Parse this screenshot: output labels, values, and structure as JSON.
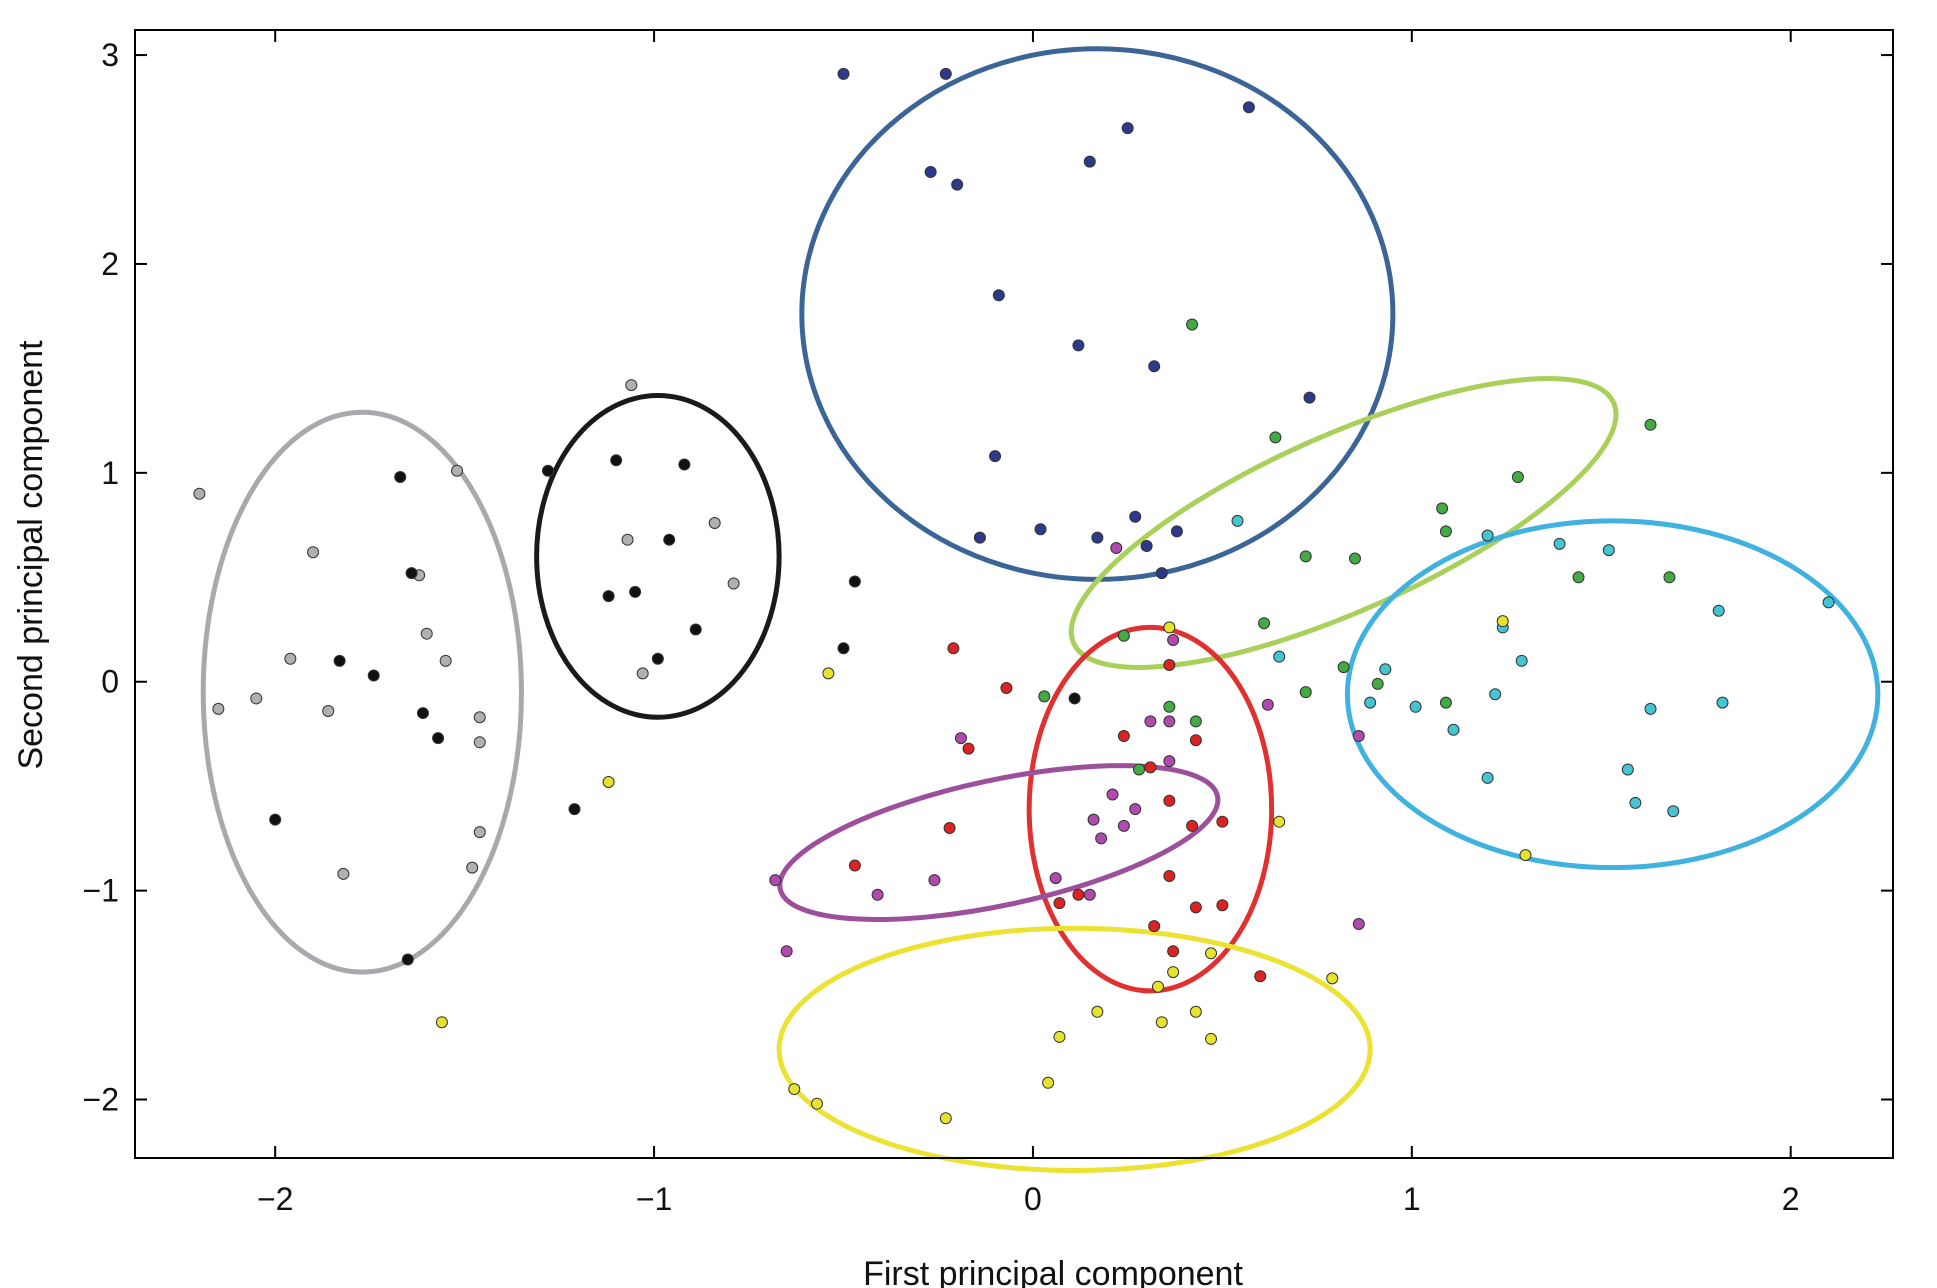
{
  "chart_data": {
    "type": "scatter",
    "title": "",
    "xlabel": "First principal component",
    "ylabel": "Second principal component",
    "xlim": [
      -2.37,
      2.27
    ],
    "ylim": [
      -2.28,
      3.12
    ],
    "xticks": [
      -2,
      -1,
      0,
      1,
      2
    ],
    "yticks": [
      -2,
      -1,
      0,
      1,
      2,
      3
    ],
    "xtick_labels": [
      "−2",
      "−1",
      "0",
      "1",
      "2"
    ],
    "ytick_labels": [
      "−2",
      "−1",
      "0",
      "1",
      "2",
      "3"
    ],
    "grid": false,
    "legend": "none",
    "series": [
      {
        "color": "#b0b0b0",
        "points": [
          [
            -2.2,
            0.9
          ],
          [
            -2.15,
            -0.13
          ],
          [
            -2.05,
            -0.08
          ],
          [
            -1.96,
            0.11
          ],
          [
            -1.9,
            0.62
          ],
          [
            -1.86,
            -0.14
          ],
          [
            -1.82,
            -0.92
          ],
          [
            -1.62,
            0.51
          ],
          [
            -1.6,
            0.23
          ],
          [
            -1.55,
            0.1
          ],
          [
            -1.52,
            1.01
          ],
          [
            -1.46,
            -0.17
          ],
          [
            -1.46,
            -0.29
          ],
          [
            -1.46,
            -0.72
          ],
          [
            -1.48,
            -0.89
          ],
          [
            -1.07,
            0.68
          ],
          [
            -1.03,
            0.04
          ],
          [
            -0.84,
            0.76
          ],
          [
            -0.79,
            0.47
          ],
          [
            -1.06,
            1.42
          ]
        ]
      },
      {
        "color": "#111111",
        "points": [
          [
            -1.67,
            0.98
          ],
          [
            -1.64,
            0.52
          ],
          [
            -1.74,
            0.03
          ],
          [
            -1.83,
            0.1
          ],
          [
            -1.61,
            -0.15
          ],
          [
            -1.57,
            -0.27
          ],
          [
            -2.0,
            -0.66
          ],
          [
            -1.65,
            -1.33
          ],
          [
            -1.28,
            1.01
          ],
          [
            -1.1,
            1.06
          ],
          [
            -0.92,
            1.04
          ],
          [
            -0.96,
            0.68
          ],
          [
            -1.05,
            0.43
          ],
          [
            -1.12,
            0.41
          ],
          [
            -0.99,
            0.11
          ],
          [
            -0.89,
            0.25
          ],
          [
            -0.47,
            0.48
          ],
          [
            -0.5,
            0.16
          ],
          [
            -1.21,
            -0.61
          ],
          [
            0.11,
            -0.08
          ]
        ]
      },
      {
        "color": "#2d3a8c",
        "points": [
          [
            -0.5,
            2.91
          ],
          [
            -0.23,
            2.91
          ],
          [
            0.57,
            2.75
          ],
          [
            0.25,
            2.65
          ],
          [
            0.15,
            2.49
          ],
          [
            -0.27,
            2.44
          ],
          [
            -0.2,
            2.38
          ],
          [
            -0.09,
            1.85
          ],
          [
            0.12,
            1.61
          ],
          [
            0.32,
            1.51
          ],
          [
            0.73,
            1.36
          ],
          [
            -0.1,
            1.08
          ],
          [
            0.27,
            0.79
          ],
          [
            0.38,
            0.72
          ],
          [
            0.02,
            0.73
          ],
          [
            -0.14,
            0.69
          ],
          [
            0.17,
            0.69
          ],
          [
            0.3,
            0.65
          ],
          [
            0.34,
            0.52
          ]
        ]
      },
      {
        "color": "#44aa44",
        "points": [
          [
            0.42,
            1.71
          ],
          [
            0.64,
            1.17
          ],
          [
            1.63,
            1.23
          ],
          [
            1.28,
            0.98
          ],
          [
            1.08,
            0.83
          ],
          [
            1.09,
            0.72
          ],
          [
            0.72,
            0.6
          ],
          [
            0.85,
            0.59
          ],
          [
            1.44,
            0.5
          ],
          [
            1.68,
            0.5
          ],
          [
            0.61,
            0.28
          ],
          [
            0.24,
            0.22
          ],
          [
            0.82,
            0.07
          ],
          [
            0.91,
            -0.01
          ],
          [
            0.72,
            -0.05
          ],
          [
            1.09,
            -0.1
          ],
          [
            0.03,
            -0.07
          ],
          [
            0.36,
            -0.12
          ],
          [
            0.43,
            -0.19
          ],
          [
            0.28,
            -0.42
          ]
        ]
      },
      {
        "color": "#45c4d4",
        "points": [
          [
            0.54,
            0.77
          ],
          [
            1.2,
            0.7
          ],
          [
            1.39,
            0.66
          ],
          [
            1.52,
            0.63
          ],
          [
            2.1,
            0.38
          ],
          [
            1.81,
            0.34
          ],
          [
            1.24,
            0.26
          ],
          [
            1.29,
            0.1
          ],
          [
            0.65,
            0.12
          ],
          [
            0.93,
            0.06
          ],
          [
            1.01,
            -0.12
          ],
          [
            0.89,
            -0.1
          ],
          [
            1.22,
            -0.06
          ],
          [
            1.11,
            -0.23
          ],
          [
            1.63,
            -0.13
          ],
          [
            1.82,
            -0.1
          ],
          [
            1.57,
            -0.42
          ],
          [
            1.2,
            -0.46
          ],
          [
            1.59,
            -0.58
          ],
          [
            1.69,
            -0.62
          ]
        ]
      },
      {
        "color": "#dd2222",
        "points": [
          [
            -0.21,
            0.16
          ],
          [
            -0.07,
            -0.03
          ],
          [
            0.36,
            0.08
          ],
          [
            0.24,
            -0.26
          ],
          [
            0.43,
            -0.28
          ],
          [
            -0.17,
            -0.32
          ],
          [
            0.31,
            -0.41
          ],
          [
            0.36,
            -0.57
          ],
          [
            0.42,
            -0.69
          ],
          [
            0.5,
            -0.67
          ],
          [
            -0.22,
            -0.7
          ],
          [
            -0.47,
            -0.88
          ],
          [
            0.36,
            -0.93
          ],
          [
            0.12,
            -1.02
          ],
          [
            0.07,
            -1.06
          ],
          [
            0.43,
            -1.08
          ],
          [
            0.5,
            -1.07
          ],
          [
            0.32,
            -1.17
          ],
          [
            0.37,
            -1.29
          ],
          [
            0.6,
            -1.41
          ]
        ]
      },
      {
        "color": "#b04aae",
        "points": [
          [
            -0.68,
            -0.95
          ],
          [
            -0.41,
            -1.02
          ],
          [
            -0.26,
            -0.95
          ],
          [
            -0.65,
            -1.29
          ],
          [
            -0.19,
            -0.27
          ],
          [
            0.21,
            -0.54
          ],
          [
            0.16,
            -0.66
          ],
          [
            0.24,
            -0.69
          ],
          [
            0.18,
            -0.75
          ],
          [
            0.27,
            -0.61
          ],
          [
            0.36,
            -0.38
          ],
          [
            0.31,
            -0.19
          ],
          [
            0.36,
            -0.19
          ],
          [
            0.22,
            0.64
          ],
          [
            0.37,
            0.2
          ],
          [
            0.06,
            -0.94
          ],
          [
            0.15,
            -1.02
          ],
          [
            0.86,
            -1.16
          ],
          [
            0.62,
            -0.11
          ],
          [
            0.86,
            -0.26
          ]
        ]
      },
      {
        "color": "#e6e22e",
        "points": [
          [
            -0.54,
            0.04
          ],
          [
            -1.12,
            -0.48
          ],
          [
            -1.56,
            -1.63
          ],
          [
            -0.63,
            -1.95
          ],
          [
            -0.57,
            -2.02
          ],
          [
            -0.23,
            -2.09
          ],
          [
            0.04,
            -1.92
          ],
          [
            0.07,
            -1.7
          ],
          [
            0.17,
            -1.58
          ],
          [
            0.33,
            -1.46
          ],
          [
            0.34,
            -1.63
          ],
          [
            0.43,
            -1.58
          ],
          [
            0.37,
            -1.39
          ],
          [
            0.47,
            -1.3
          ],
          [
            0.47,
            -1.71
          ],
          [
            0.79,
            -1.42
          ],
          [
            0.65,
            -0.67
          ],
          [
            1.24,
            0.29
          ],
          [
            0.36,
            0.26
          ],
          [
            1.3,
            -0.83
          ]
        ]
      }
    ],
    "ellipses": [
      {
        "color": "#a9a9ad",
        "cx": -1.77,
        "cy": -0.05,
        "rx": 0.42,
        "ry": 1.34,
        "angle": 0
      },
      {
        "color": "#1a1a1a",
        "cx": -0.99,
        "cy": 0.6,
        "rx": 0.32,
        "ry": 0.77,
        "angle": 0
      },
      {
        "color": "#3b6596",
        "cx": 0.17,
        "cy": 1.76,
        "rx": 0.78,
        "ry": 1.27,
        "angle": 0
      },
      {
        "color": "#a8d05a",
        "cx": 0.82,
        "cy": 0.76,
        "rx": 0.78,
        "ry": 0.42,
        "angle": 24
      },
      {
        "color": "#3fb2e0",
        "cx": 1.53,
        "cy": -0.06,
        "rx": 0.7,
        "ry": 0.83,
        "angle": 0
      },
      {
        "color": "#e03030",
        "cx": 0.31,
        "cy": -0.61,
        "rx": 0.32,
        "ry": 0.87,
        "angle": 0
      },
      {
        "color": "#9c4f9c",
        "cx": -0.09,
        "cy": -0.77,
        "rx": 0.59,
        "ry": 0.3,
        "angle": 12
      },
      {
        "color": "#ebe232",
        "cx": 0.11,
        "cy": -1.76,
        "rx": 0.78,
        "ry": 0.58,
        "angle": 0
      }
    ]
  }
}
